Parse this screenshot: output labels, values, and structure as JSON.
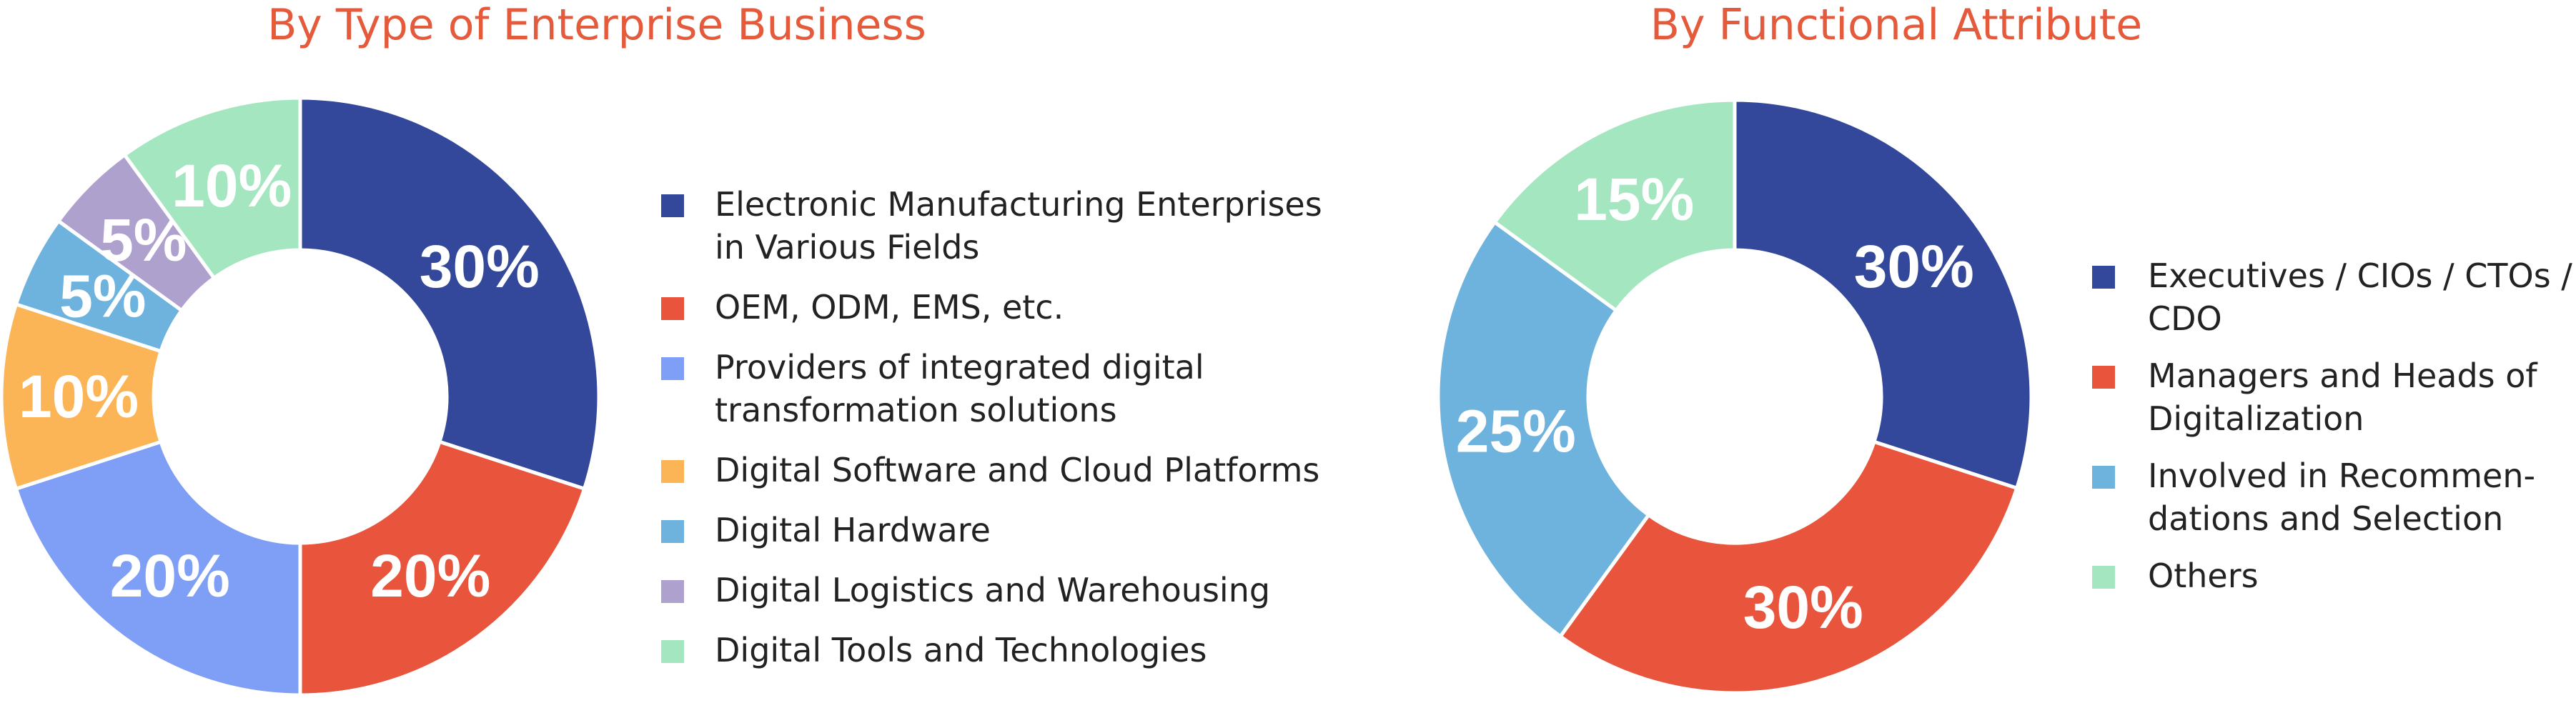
{
  "chart_data": [
    {
      "type": "pie",
      "title": "By Type of Enterprise Business",
      "legend_position": "right",
      "slices": [
        {
          "label": [
            "Electronic Manufacturing Enterprises",
            "in Various Fields"
          ],
          "value": 30,
          "value_label": "30%",
          "color": "#33489a"
        },
        {
          "label": [
            "OEM, ODM, EMS, etc."
          ],
          "value": 20,
          "value_label": "20%",
          "color": "#e8553c"
        },
        {
          "label": [
            "Providers of integrated digital",
            "transformation solutions"
          ],
          "value": 20,
          "value_label": "20%",
          "color": "#7f9ef5"
        },
        {
          "label": [
            "Digital Software and Cloud Platforms"
          ],
          "value": 10,
          "value_label": "10%",
          "color": "#fbb456"
        },
        {
          "label": [
            "Digital Hardware"
          ],
          "value": 5,
          "value_label": "5%",
          "color": "#6db3de"
        },
        {
          "label": [
            "Digital Logistics and Warehousing"
          ],
          "value": 5,
          "value_label": "5%",
          "color": "#afa1cd"
        },
        {
          "label": [
            "Digital Tools and Technologies"
          ],
          "value": 10,
          "value_label": "10%",
          "color": "#a3e6bf"
        }
      ]
    },
    {
      "type": "pie",
      "title": "By Functional Attribute",
      "legend_position": "right",
      "slices": [
        {
          "label": [
            "Executives / CIOs / CTOs /",
            "CDO"
          ],
          "value": 30,
          "value_label": "30%",
          "color": "#33489a"
        },
        {
          "label": [
            "Managers and Heads of",
            "Digitalization"
          ],
          "value": 30,
          "value_label": "30%",
          "color": "#e8553c"
        },
        {
          "label": [
            "Involved in Recommen-",
            "dations and Selection"
          ],
          "value": 25,
          "value_label": "25%",
          "color": "#6db3de"
        },
        {
          "label": [
            "Others"
          ],
          "value": 15,
          "value_label": "15%",
          "color": "#a3e6bf"
        }
      ]
    }
  ]
}
